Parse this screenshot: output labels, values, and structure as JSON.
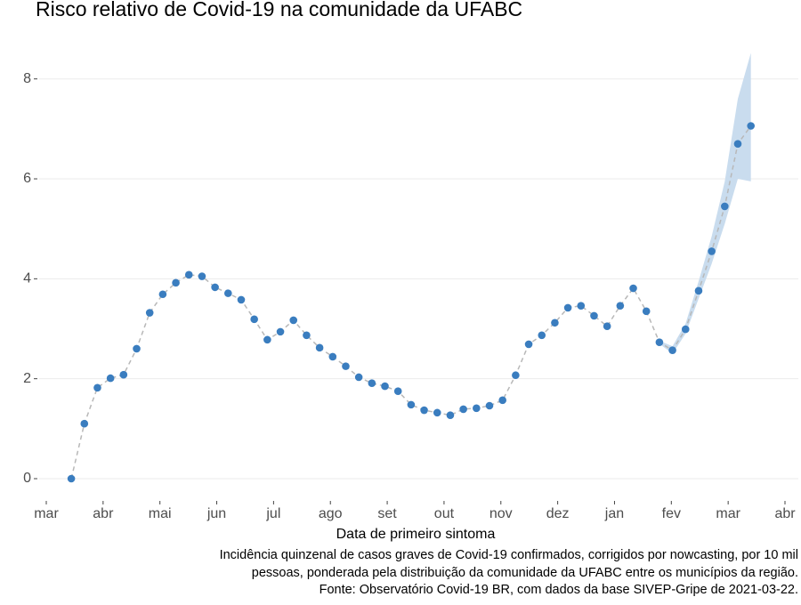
{
  "chart_data": {
    "type": "line",
    "title": "Risco relativo de Covid-19 na comunidade da UFABC",
    "xlabel": "Data de primeiro sintoma",
    "caption": [
      "Incidência quinzenal de casos graves de Covid-19 confirmados, corrigidos por nowcasting, por 10 mil",
      "pessoas, ponderada pela distribuição da comunidade da UFABC entre os municípios da região.",
      "Fonte: Observatório Covid-19 BR, com dados da base SIVEP-Gripe de 2021-03-22."
    ],
    "x": [
      0.44,
      0.67,
      0.9,
      1.13,
      1.36,
      1.59,
      1.82,
      2.05,
      2.28,
      2.51,
      2.74,
      2.97,
      3.2,
      3.43,
      3.66,
      3.89,
      4.12,
      4.35,
      4.58,
      4.81,
      5.04,
      5.27,
      5.5,
      5.73,
      5.96,
      6.19,
      6.42,
      6.65,
      6.88,
      7.11,
      7.34,
      7.57,
      7.8,
      8.03,
      8.26,
      8.49,
      8.72,
      8.95,
      9.18,
      9.41,
      9.64,
      9.87,
      10.1,
      10.33,
      10.56,
      10.79,
      11.02,
      11.25,
      11.48,
      11.71,
      11.94,
      12.17,
      12.4
    ],
    "values": [
      0,
      1.1,
      1.82,
      2.01,
      2.08,
      2.6,
      3.32,
      3.69,
      3.92,
      4.08,
      4.05,
      3.83,
      3.71,
      3.58,
      3.19,
      2.78,
      2.94,
      3.17,
      2.87,
      2.62,
      2.44,
      2.25,
      2.03,
      1.91,
      1.85,
      1.75,
      1.48,
      1.37,
      1.32,
      1.27,
      1.39,
      1.41,
      1.46,
      1.57,
      2.07,
      2.69,
      2.87,
      3.12,
      3.42,
      3.46,
      3.26,
      3.05,
      3.46,
      3.81,
      3.35,
      2.73,
      2.57,
      2.99,
      3.76,
      4.55,
      5.45,
      6.7,
      7.06
    ],
    "color": "#3a7dbf",
    "line_color": "#b8b8b8",
    "band": {
      "color": "#c9dcee",
      "lower": [
        null,
        null,
        null,
        null,
        null,
        null,
        null,
        null,
        null,
        null,
        null,
        null,
        null,
        null,
        null,
        null,
        null,
        null,
        null,
        null,
        null,
        null,
        null,
        null,
        null,
        null,
        null,
        null,
        null,
        null,
        null,
        null,
        null,
        null,
        null,
        null,
        null,
        null,
        null,
        null,
        null,
        null,
        null,
        null,
        null,
        2.7,
        2.5,
        2.9,
        3.6,
        4.3,
        5.1,
        6.0,
        5.95
      ],
      "upper": [
        null,
        null,
        null,
        null,
        null,
        null,
        null,
        null,
        null,
        null,
        null,
        null,
        null,
        null,
        null,
        null,
        null,
        null,
        null,
        null,
        null,
        null,
        null,
        null,
        null,
        null,
        null,
        null,
        null,
        null,
        null,
        null,
        null,
        null,
        null,
        null,
        null,
        null,
        null,
        null,
        null,
        null,
        null,
        null,
        null,
        2.76,
        2.65,
        3.1,
        3.95,
        4.85,
        5.95,
        7.6,
        8.52
      ]
    },
    "xlim": [
      0,
      13
    ],
    "xticks": [
      {
        "value": 0,
        "label": "mar"
      },
      {
        "value": 1,
        "label": "abr"
      },
      {
        "value": 2,
        "label": "mai"
      },
      {
        "value": 3,
        "label": "jun"
      },
      {
        "value": 4,
        "label": "jul"
      },
      {
        "value": 5,
        "label": "ago"
      },
      {
        "value": 6,
        "label": "set"
      },
      {
        "value": 7,
        "label": "out"
      },
      {
        "value": 8,
        "label": "nov"
      },
      {
        "value": 9,
        "label": "dez"
      },
      {
        "value": 10,
        "label": "jan"
      },
      {
        "value": 11,
        "label": "fev"
      },
      {
        "value": 12,
        "label": "mar"
      },
      {
        "value": 13,
        "label": "abr"
      }
    ],
    "ylim": [
      -0.57,
      8.6
    ],
    "yticks": [
      0,
      2,
      4,
      6,
      8
    ],
    "grid": true
  }
}
